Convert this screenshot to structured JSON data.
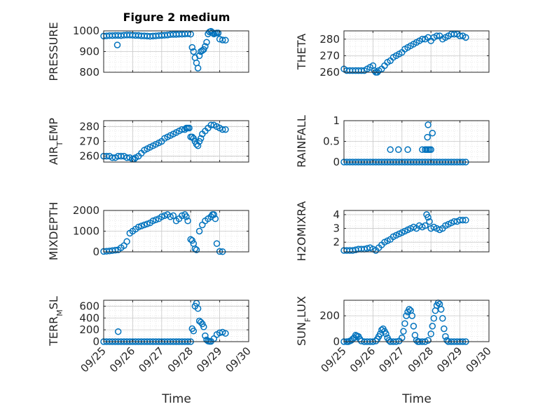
{
  "figure": {
    "title": "Figure 2 medium",
    "marker_color": "#0072BD",
    "x_tick_labels": [
      "09/25",
      "09/26",
      "09/27",
      "09/28",
      "09/29",
      "09/30"
    ],
    "xlabel": "Time"
  },
  "chart_data": [
    {
      "type": "scatter",
      "name": "pressure",
      "ylabel": "PRESSURE",
      "ylim": [
        800,
        1000
      ],
      "yticks": [
        800,
        900,
        1000
      ],
      "xlim": [
        0,
        5
      ],
      "grid": true,
      "x": [
        0.0,
        0.1,
        0.2,
        0.3,
        0.4,
        0.5,
        0.6,
        0.7,
        0.8,
        0.9,
        1.0,
        1.1,
        1.2,
        1.3,
        1.4,
        1.5,
        1.6,
        1.7,
        1.8,
        1.9,
        2.0,
        2.1,
        2.2,
        2.3,
        2.4,
        2.5,
        2.6,
        2.7,
        2.8,
        2.9,
        3.0,
        0.47,
        3.05,
        3.1,
        3.15,
        3.2,
        3.25,
        3.3,
        3.35,
        3.4,
        3.45,
        3.5,
        3.55,
        3.6,
        3.65,
        3.7,
        3.75,
        3.8,
        3.85,
        3.9,
        3.95,
        4.0,
        4.1,
        4.2
      ],
      "y": [
        975,
        976,
        977,
        977,
        978,
        978,
        977,
        979,
        980,
        980,
        979,
        978,
        978,
        976,
        976,
        975,
        974,
        975,
        976,
        977,
        978,
        979,
        980,
        982,
        983,
        983,
        984,
        984,
        985,
        986,
        984,
        932,
        920,
        900,
        870,
        845,
        820,
        880,
        900,
        905,
        910,
        925,
        945,
        985,
        995,
        998,
        992,
        985,
        988,
        990,
        990,
        960,
        956,
        955
      ]
    },
    {
      "type": "scatter",
      "name": "theta",
      "ylabel": "THETA",
      "ylim": [
        260,
        285
      ],
      "yticks": [
        260,
        270,
        280
      ],
      "xlim": [
        0,
        5
      ],
      "grid": true,
      "x": [
        0.0,
        0.1,
        0.2,
        0.3,
        0.4,
        0.5,
        0.6,
        0.7,
        0.8,
        0.9,
        1.0,
        1.05,
        1.1,
        1.15,
        1.2,
        1.3,
        1.4,
        1.5,
        1.6,
        1.7,
        1.8,
        1.9,
        2.0,
        2.1,
        2.2,
        2.3,
        2.4,
        2.5,
        2.6,
        2.7,
        2.8,
        2.9,
        3.0,
        3.1,
        3.2,
        3.3,
        3.4,
        3.5,
        3.6,
        3.7,
        3.8,
        3.9,
        4.0,
        4.1,
        4.2
      ],
      "y": [
        262,
        261,
        261,
        261,
        261,
        261,
        261,
        261,
        262,
        263,
        264,
        261,
        260,
        260,
        261,
        262,
        264,
        266,
        267,
        269,
        270,
        271,
        272,
        274,
        275,
        276,
        277,
        278,
        279,
        280,
        280,
        281,
        279,
        281,
        282,
        282,
        280,
        281,
        282,
        283,
        283,
        283,
        282,
        282,
        281
      ]
    },
    {
      "type": "scatter",
      "name": "air_temp",
      "ylabel": "AIR_TEMP",
      "ylim": [
        256,
        284
      ],
      "yticks": [
        260,
        270,
        280
      ],
      "xlim": [
        0,
        5
      ],
      "grid": true,
      "x": [
        0.0,
        0.1,
        0.2,
        0.3,
        0.4,
        0.5,
        0.6,
        0.7,
        0.8,
        0.9,
        1.0,
        1.05,
        1.1,
        1.2,
        1.3,
        1.4,
        1.5,
        1.6,
        1.7,
        1.8,
        1.9,
        2.0,
        2.1,
        2.2,
        2.3,
        2.4,
        2.5,
        2.6,
        2.7,
        2.8,
        2.85,
        2.9,
        2.95,
        3.0,
        3.05,
        3.1,
        3.15,
        3.2,
        3.25,
        3.3,
        3.35,
        3.4,
        3.5,
        3.6,
        3.7,
        3.8,
        3.9,
        4.0,
        4.1,
        4.2
      ],
      "y": [
        260,
        260,
        260,
        259,
        259,
        260,
        260,
        260,
        259,
        259,
        258,
        258,
        259,
        260,
        262,
        264,
        265,
        266,
        267,
        268,
        269,
        270,
        272,
        273,
        274,
        275,
        276,
        277,
        278,
        278,
        279,
        279,
        279,
        273,
        273,
        272,
        270,
        268,
        267,
        270,
        272,
        275,
        277,
        279,
        281,
        281,
        280,
        279,
        278,
        278
      ]
    },
    {
      "type": "scatter",
      "name": "rainfall",
      "ylabel": "RAINFALL",
      "ylim": [
        0,
        1
      ],
      "yticks": [
        0,
        0.5,
        1
      ],
      "xlim": [
        0,
        5
      ],
      "grid": true,
      "x": [
        0.0,
        0.1,
        0.2,
        0.3,
        0.4,
        0.5,
        0.6,
        0.7,
        0.8,
        0.9,
        1.0,
        1.1,
        1.2,
        1.3,
        1.4,
        1.5,
        1.6,
        1.7,
        1.8,
        1.9,
        2.0,
        2.1,
        2.2,
        2.3,
        2.4,
        2.5,
        2.6,
        2.7,
        2.8,
        2.9,
        3.0,
        3.1,
        3.2,
        3.3,
        3.4,
        3.5,
        3.6,
        3.7,
        3.8,
        3.9,
        4.0,
        4.1,
        4.2,
        1.6,
        1.88,
        2.2,
        2.7,
        2.8,
        2.85,
        2.9,
        2.95,
        3.0,
        3.05,
        2.88,
        2.9
      ],
      "y": [
        0,
        0,
        0,
        0,
        0,
        0,
        0,
        0,
        0,
        0,
        0,
        0,
        0,
        0,
        0,
        0,
        0,
        0,
        0,
        0,
        0,
        0,
        0,
        0,
        0,
        0,
        0,
        0,
        0,
        0,
        0,
        0,
        0,
        0,
        0,
        0,
        0,
        0,
        0,
        0,
        0,
        0,
        0,
        0.3,
        0.3,
        0.3,
        0.3,
        0.3,
        0.3,
        0.3,
        0.3,
        0.3,
        0.7,
        0.6,
        0.9
      ]
    },
    {
      "type": "scatter",
      "name": "mixdepth",
      "ylabel": "MIXDEPTH",
      "ylim": [
        0,
        2000
      ],
      "yticks": [
        0,
        1000,
        2000
      ],
      "xlim": [
        0,
        5
      ],
      "grid": true,
      "x": [
        0.0,
        0.1,
        0.2,
        0.3,
        0.4,
        0.5,
        0.6,
        0.7,
        0.8,
        0.9,
        1.0,
        1.1,
        1.2,
        1.3,
        1.4,
        1.5,
        1.6,
        1.7,
        1.8,
        1.9,
        2.0,
        2.1,
        2.2,
        2.3,
        2.4,
        2.5,
        2.6,
        2.7,
        2.8,
        2.85,
        2.9,
        3.0,
        3.05,
        3.1,
        3.15,
        3.2,
        3.3,
        3.4,
        3.5,
        3.6,
        3.7,
        3.75,
        3.8,
        3.85,
        3.9,
        4.0,
        4.1
      ],
      "y": [
        20,
        30,
        40,
        60,
        80,
        100,
        200,
        300,
        500,
        900,
        1000,
        1100,
        1200,
        1250,
        1300,
        1350,
        1400,
        1500,
        1550,
        1600,
        1700,
        1750,
        1800,
        1700,
        1750,
        1500,
        1600,
        1750,
        1800,
        1700,
        1500,
        600,
        550,
        400,
        150,
        100,
        1000,
        1300,
        1500,
        1600,
        1700,
        1800,
        1800,
        1600,
        400,
        20,
        10
      ]
    },
    {
      "type": "scatter",
      "name": "h2omixra",
      "ylabel": "H2OMIXRA",
      "ylim": [
        1.3,
        4.3
      ],
      "yticks": [
        2,
        3,
        4
      ],
      "xlim": [
        0,
        5
      ],
      "grid": true,
      "x": [
        0.0,
        0.1,
        0.2,
        0.3,
        0.4,
        0.5,
        0.6,
        0.7,
        0.8,
        0.9,
        1.0,
        1.1,
        1.2,
        1.3,
        1.4,
        1.5,
        1.6,
        1.7,
        1.8,
        1.9,
        2.0,
        2.1,
        2.2,
        2.3,
        2.4,
        2.5,
        2.6,
        2.7,
        2.8,
        2.85,
        2.9,
        2.95,
        3.0,
        3.1,
        3.2,
        3.3,
        3.4,
        3.5,
        3.6,
        3.7,
        3.8,
        3.9,
        4.0,
        4.1,
        4.2
      ],
      "y": [
        1.4,
        1.4,
        1.4,
        1.4,
        1.45,
        1.5,
        1.5,
        1.5,
        1.55,
        1.6,
        1.5,
        1.4,
        1.6,
        1.8,
        2.0,
        2.1,
        2.2,
        2.4,
        2.5,
        2.6,
        2.7,
        2.8,
        2.9,
        3.0,
        3.1,
        3.0,
        3.2,
        3.1,
        3.2,
        4.0,
        3.8,
        3.5,
        3.0,
        3.1,
        3.0,
        2.9,
        3.0,
        3.2,
        3.3,
        3.4,
        3.5,
        3.5,
        3.6,
        3.6,
        3.6
      ]
    },
    {
      "type": "scatter",
      "name": "terr_msl",
      "ylabel": "TERR_MSL",
      "ylim": [
        0,
        700
      ],
      "yticks": [
        0,
        200,
        400,
        600
      ],
      "xlim": [
        0,
        5
      ],
      "grid": true,
      "x": [
        0.0,
        0.1,
        0.2,
        0.3,
        0.4,
        0.5,
        0.6,
        0.7,
        0.8,
        0.9,
        1.0,
        1.1,
        1.2,
        1.3,
        1.4,
        1.5,
        1.6,
        1.7,
        1.8,
        1.9,
        2.0,
        2.1,
        2.2,
        2.3,
        2.4,
        2.5,
        2.6,
        2.7,
        2.8,
        2.9,
        3.0,
        0.5,
        3.05,
        3.1,
        3.15,
        3.2,
        3.25,
        3.3,
        3.35,
        3.4,
        3.45,
        3.5,
        3.55,
        3.6,
        3.65,
        3.7,
        3.8,
        3.9,
        4.0,
        4.1,
        4.2
      ],
      "y": [
        0,
        0,
        0,
        0,
        0,
        0,
        0,
        0,
        0,
        0,
        0,
        0,
        0,
        0,
        0,
        0,
        0,
        0,
        0,
        0,
        0,
        0,
        0,
        0,
        0,
        0,
        0,
        0,
        0,
        0,
        0,
        170,
        220,
        180,
        600,
        650,
        560,
        350,
        330,
        300,
        250,
        100,
        30,
        10,
        5,
        5,
        50,
        120,
        150,
        160,
        140
      ]
    },
    {
      "type": "scatter",
      "name": "sun_flux",
      "ylabel": "SUN_FLUX",
      "ylim": [
        0,
        320
      ],
      "yticks": [
        0,
        200
      ],
      "xlim": [
        0,
        5
      ],
      "grid": true,
      "x": [
        0.0,
        0.1,
        0.15,
        0.2,
        0.25,
        0.3,
        0.35,
        0.4,
        0.45,
        0.5,
        0.55,
        0.6,
        0.7,
        0.8,
        0.9,
        1.0,
        1.1,
        1.15,
        1.2,
        1.25,
        1.3,
        1.35,
        1.4,
        1.45,
        1.5,
        1.55,
        1.6,
        1.7,
        1.8,
        1.9,
        2.0,
        2.05,
        2.1,
        2.15,
        2.2,
        2.25,
        2.3,
        2.35,
        2.4,
        2.45,
        2.5,
        2.55,
        2.6,
        2.7,
        2.8,
        2.9,
        3.0,
        3.05,
        3.1,
        3.15,
        3.2,
        3.25,
        3.3,
        3.35,
        3.4,
        3.45,
        3.5,
        3.55,
        3.6,
        3.7,
        3.8,
        3.9,
        4.0,
        4.1,
        4.2
      ],
      "y": [
        0,
        0,
        0,
        5,
        10,
        20,
        30,
        50,
        45,
        40,
        20,
        5,
        0,
        0,
        0,
        0,
        5,
        20,
        40,
        60,
        90,
        100,
        80,
        60,
        30,
        10,
        0,
        0,
        0,
        5,
        30,
        80,
        140,
        200,
        230,
        250,
        240,
        200,
        120,
        50,
        10,
        0,
        0,
        0,
        0,
        10,
        60,
        120,
        180,
        240,
        280,
        300,
        290,
        250,
        180,
        100,
        40,
        10,
        0,
        0,
        0,
        0,
        0,
        0,
        0
      ]
    }
  ]
}
